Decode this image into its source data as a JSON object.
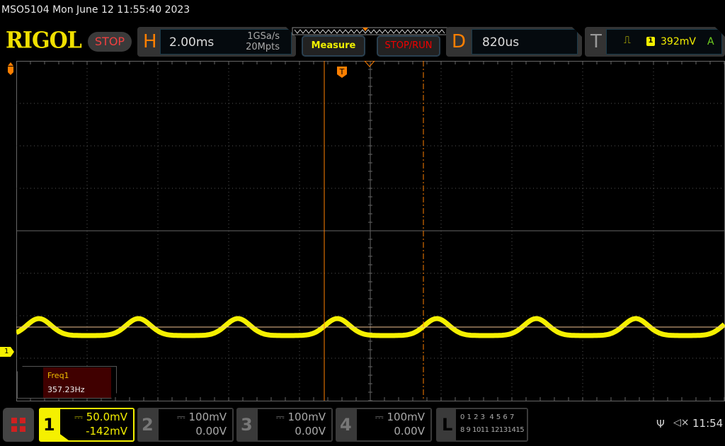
{
  "title": "MSO5104  Mon June 12 11:55:40 2023",
  "logo": "RIGOL",
  "run_state": "STOP",
  "horizontal": {
    "letter": "H",
    "timebase": "2.00ms",
    "sample_rate": "1GSa/s",
    "memory_depth": "20Mpts"
  },
  "buttons": {
    "measure": "Measure",
    "stop_run": "STOP/RUN"
  },
  "delay": {
    "letter": "D",
    "value": "820us"
  },
  "trigger": {
    "letter": "T",
    "source": "1",
    "level": "392mV",
    "mode": "A",
    "marker": "T"
  },
  "measurement": {
    "label": "Freq1",
    "value": "357.23Hz"
  },
  "channels": [
    {
      "num": "1",
      "scale": "50.0mV",
      "offset": "-142mV",
      "color": "#f5f000",
      "active": true
    },
    {
      "num": "2",
      "scale": "100mV",
      "offset": "0.00V"
    },
    {
      "num": "3",
      "scale": "100mV",
      "offset": "0.00V"
    },
    {
      "num": "4",
      "scale": "100mV",
      "offset": "0.00V"
    }
  ],
  "logic": {
    "letter": "L",
    "row1": "0 1 2 3  4 5 6 7",
    "row2": "8 9 1011 12131415"
  },
  "status": {
    "clock": "11:54",
    "usb_icon": "usb-icon",
    "sound_icon": "speaker-muted-icon"
  },
  "ch1_marker": "1",
  "colors": {
    "ch1": "#f5f000",
    "cursor": "#ff7f00",
    "accent": "#ff7f00"
  }
}
